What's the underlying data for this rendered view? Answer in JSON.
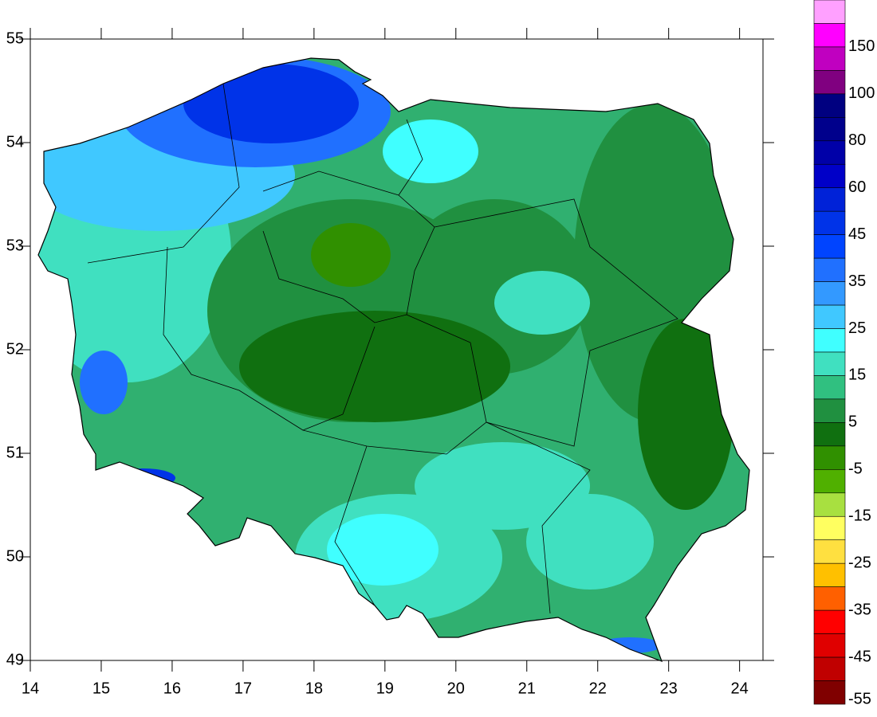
{
  "chart_data": {
    "type": "map",
    "xlim": [
      14,
      24.33
    ],
    "ylim": [
      49,
      55
    ],
    "xticks": [
      14,
      15,
      16,
      17,
      18,
      19,
      20,
      21,
      22,
      23,
      24
    ],
    "yticks": [
      49,
      50,
      51,
      52,
      53,
      54,
      55
    ],
    "colorbar": {
      "ticks": [
        150,
        100,
        80,
        60,
        45,
        35,
        25,
        15,
        5,
        -5,
        -15,
        -25,
        -35,
        -45,
        -55
      ],
      "colors": [
        "#ffa0ff",
        "#ff00ff",
        "#c000c0",
        "#800080",
        "#000080",
        "#00008c",
        "#0000a8",
        "#0000c8",
        "#0022d8",
        "#0033e8",
        "#0044ff",
        "#2070ff",
        "#3399ff",
        "#40c8ff",
        "#40ffff",
        "#40e0c0",
        "#30c080",
        "#209040",
        "#107010",
        "#309000",
        "#50b000",
        "#a8e040",
        "#ffff60",
        "#ffe040",
        "#ffc000",
        "#ff6000",
        "#ff0000",
        "#e00000",
        "#c00000",
        "#800000"
      ]
    }
  }
}
